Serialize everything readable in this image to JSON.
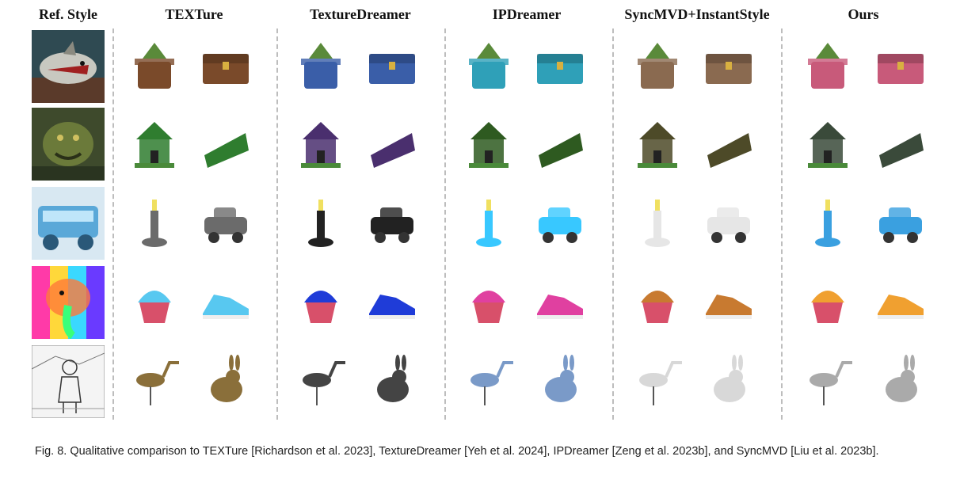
{
  "header": {
    "ref": "Ref. Style",
    "methods": [
      "TEXTure",
      "TextureDreamer",
      "IPDreamer",
      "SyncMVD+InstantStyle",
      "Ours"
    ]
  },
  "rows": [
    {
      "ref": "shark-style-image",
      "objects": [
        "flower-pot",
        "treasure-chest"
      ]
    },
    {
      "ref": "moss-monster-style-image",
      "objects": [
        "house",
        "cake-slice"
      ]
    },
    {
      "ref": "ice-truck-style-image",
      "objects": [
        "candlestick",
        "toy-car"
      ]
    },
    {
      "ref": "rainbow-elephant-style-image",
      "objects": [
        "cupcake",
        "sneaker"
      ]
    },
    {
      "ref": "sketch-girl-style-image",
      "objects": [
        "heron",
        "rabbit"
      ]
    }
  ],
  "palettes": {
    "TEXTure": [
      "#7a4a2a",
      "#2f7d2f",
      "#6b6b6b",
      "#58c8f0",
      "#8a6f3a"
    ],
    "TextureDreamer": [
      "#3a5ea8",
      "#4a2f6e",
      "#222222",
      "#1f3cd8",
      "#444444"
    ],
    "IPDreamer": [
      "#2fa0b8",
      "#2e5a20",
      "#38c8ff",
      "#e040a0",
      "#7a9ac8"
    ],
    "SyncMVD+InstantStyle": [
      "#8a6a50",
      "#4d4a28",
      "#e6e6e6",
      "#c87a30",
      "#d8d8d8"
    ],
    "Ours": [
      "#c85a7a",
      "#3a4a3a",
      "#3aa0e0",
      "#f0a030",
      "#aaaaaa"
    ]
  },
  "caption": "Fig. 8.  Qualitative comparison to TEXTure [Richardson et al. 2023], TextureDreamer [Yeh et al. 2024], IPDreamer [Zeng et al. 2023b], and SyncMVD [Liu et al. 2023b]."
}
